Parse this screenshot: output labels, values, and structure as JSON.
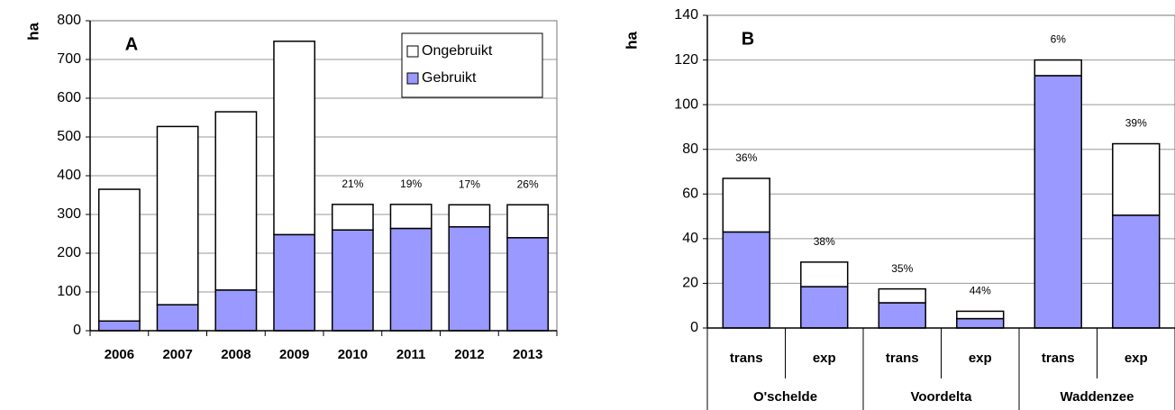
{
  "chart_data": [
    {
      "type": "bar",
      "stacked": true,
      "panel_label": "A",
      "ylabel": "ha",
      "categories": [
        "2006",
        "2007",
        "2008",
        "2009",
        "2010",
        "2011",
        "2012",
        "2013"
      ],
      "series": [
        {
          "name": "Gebruikt",
          "color": "#9999ff",
          "values": [
            25,
            67,
            105,
            248,
            260,
            264,
            268,
            240
          ]
        },
        {
          "name": "Ongebruikt",
          "color": "#ffffff",
          "values": [
            340,
            460,
            460,
            499,
            66,
            62,
            57,
            85
          ]
        }
      ],
      "bar_labels": [
        null,
        null,
        null,
        null,
        "21%",
        "19%",
        "17%",
        "26%"
      ],
      "ylim": [
        0,
        800
      ],
      "yticks": [
        0,
        100,
        200,
        300,
        400,
        500,
        600,
        700,
        800
      ],
      "grid": true,
      "legend": "top-right"
    },
    {
      "type": "bar",
      "stacked": true,
      "panel_label": "B",
      "ylabel": "ha",
      "categories": [
        "trans",
        "exp",
        "trans",
        "exp",
        "trans",
        "exp"
      ],
      "groups": [
        "O'schelde",
        "Voordelta",
        "Waddenzee"
      ],
      "series": [
        {
          "name": "Gebruikt",
          "color": "#9999ff",
          "values": [
            43,
            18.5,
            11.3,
            4.2,
            113,
            50.5
          ]
        },
        {
          "name": "Ongebruikt",
          "color": "#ffffff",
          "values": [
            24,
            11,
            6.2,
            3.3,
            7,
            32
          ]
        }
      ],
      "bar_labels": [
        "36%",
        "38%",
        "35%",
        "44%",
        "6%",
        "39%"
      ],
      "ylim": [
        0,
        140
      ],
      "yticks": [
        0,
        20,
        40,
        60,
        80,
        100,
        120,
        140
      ],
      "grid": true
    }
  ]
}
